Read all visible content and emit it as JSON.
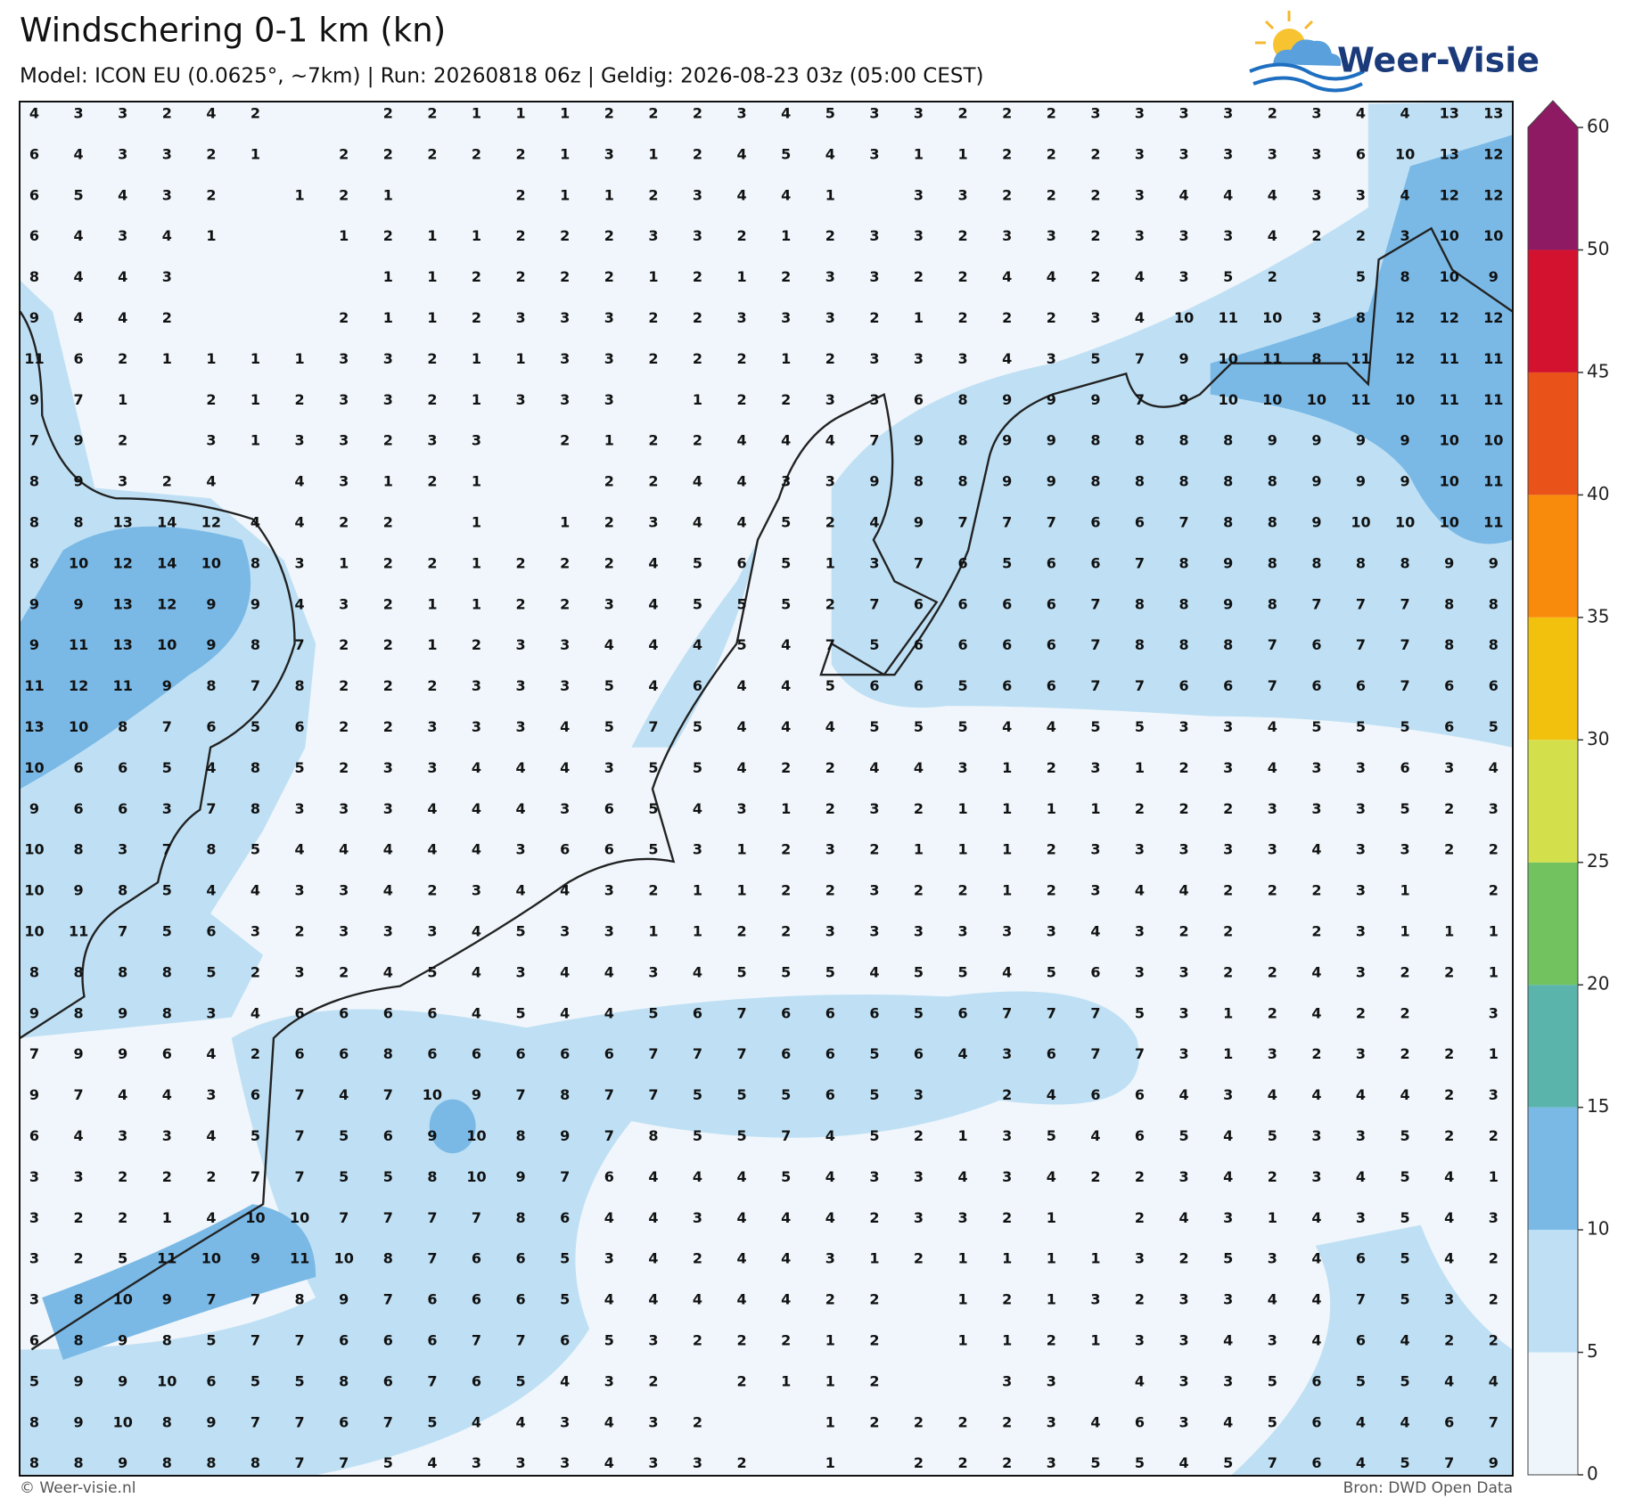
{
  "header": {
    "title": "Windschering 0-1 km (kn)",
    "subtitle": "Model: ICON EU (0.0625°, ~7km)  |  Run: 20260818 06z  |  Geldig: 2026-08-23 03z (05:00 CEST)"
  },
  "logo": "Weer-Visie",
  "footer": {
    "left": "© Weer-visie.nl",
    "right": "Bron: DWD Open Data"
  },
  "colorbar": {
    "levels": [
      0,
      5,
      10,
      15,
      20,
      25,
      30,
      35,
      40,
      45,
      50,
      60
    ],
    "colors": [
      "#eef5fb",
      "#bfe0f4",
      "#7ab9e6",
      "#5ab4ac",
      "#72c35f",
      "#d4e04b",
      "#f2c10e",
      "#f88b0c",
      "#e9531a",
      "#d2122f",
      "#8e1a64"
    ],
    "extend_color": "#8e1a64"
  },
  "grid": {
    "rows": [
      [
        4,
        3,
        3,
        2,
        4,
        2,
        null,
        null,
        2,
        2,
        1,
        1,
        1,
        2,
        2,
        2,
        3,
        4,
        5,
        3,
        3,
        2,
        2,
        2,
        3,
        3,
        3,
        3,
        2,
        3,
        4,
        4,
        13,
        13
      ],
      [
        6,
        4,
        3,
        3,
        2,
        1,
        null,
        2,
        2,
        2,
        2,
        2,
        1,
        3,
        1,
        2,
        4,
        5,
        4,
        3,
        1,
        1,
        2,
        2,
        2,
        3,
        3,
        3,
        3,
        3,
        6,
        10,
        13,
        12
      ],
      [
        6,
        5,
        4,
        3,
        2,
        null,
        1,
        2,
        1,
        null,
        null,
        2,
        1,
        1,
        2,
        3,
        4,
        4,
        1,
        null,
        3,
        3,
        2,
        2,
        2,
        3,
        4,
        4,
        4,
        3,
        3,
        4,
        12,
        12
      ],
      [
        6,
        4,
        3,
        4,
        1,
        null,
        null,
        1,
        2,
        1,
        1,
        2,
        2,
        2,
        3,
        3,
        2,
        1,
        2,
        3,
        3,
        2,
        3,
        3,
        2,
        3,
        3,
        3,
        4,
        2,
        2,
        3,
        10,
        10
      ],
      [
        8,
        4,
        4,
        3,
        null,
        null,
        null,
        null,
        1,
        1,
        2,
        2,
        2,
        2,
        1,
        2,
        1,
        2,
        3,
        3,
        2,
        2,
        4,
        4,
        2,
        4,
        3,
        5,
        2,
        null,
        5,
        8,
        10,
        9
      ],
      [
        9,
        4,
        4,
        2,
        null,
        null,
        null,
        2,
        1,
        1,
        2,
        3,
        3,
        3,
        2,
        2,
        3,
        3,
        3,
        2,
        1,
        2,
        2,
        2,
        3,
        4,
        10,
        11,
        10,
        3,
        8,
        12,
        12,
        12
      ],
      [
        11,
        6,
        2,
        1,
        1,
        1,
        1,
        3,
        3,
        2,
        1,
        1,
        3,
        3,
        2,
        2,
        2,
        1,
        2,
        3,
        3,
        3,
        4,
        3,
        5,
        7,
        9,
        10,
        11,
        8,
        11,
        12,
        11,
        11
      ],
      [
        9,
        7,
        1,
        null,
        2,
        1,
        2,
        3,
        3,
        2,
        1,
        3,
        3,
        3,
        null,
        1,
        2,
        2,
        3,
        3,
        6,
        8,
        9,
        9,
        9,
        7,
        9,
        10,
        10,
        10,
        11,
        10,
        11,
        11
      ],
      [
        7,
        9,
        2,
        null,
        3,
        1,
        3,
        3,
        2,
        3,
        3,
        null,
        2,
        1,
        2,
        2,
        4,
        4,
        4,
        7,
        9,
        8,
        9,
        9,
        8,
        8,
        8,
        8,
        9,
        9,
        9,
        9,
        10,
        10
      ],
      [
        8,
        9,
        3,
        2,
        4,
        null,
        4,
        3,
        1,
        2,
        1,
        null,
        null,
        2,
        2,
        4,
        4,
        3,
        3,
        9,
        8,
        8,
        9,
        9,
        8,
        8,
        8,
        8,
        8,
        9,
        9,
        9,
        10,
        11
      ],
      [
        8,
        8,
        13,
        14,
        12,
        4,
        4,
        2,
        2,
        null,
        1,
        null,
        1,
        2,
        3,
        4,
        4,
        5,
        2,
        4,
        9,
        7,
        7,
        7,
        6,
        6,
        7,
        8,
        8,
        9,
        10,
        10,
        10,
        11
      ],
      [
        8,
        10,
        12,
        14,
        10,
        8,
        3,
        1,
        2,
        2,
        1,
        2,
        2,
        2,
        4,
        5,
        6,
        5,
        1,
        3,
        7,
        6,
        5,
        6,
        6,
        7,
        8,
        9,
        8,
        8,
        8,
        8,
        9,
        9
      ],
      [
        9,
        9,
        13,
        12,
        9,
        9,
        4,
        3,
        2,
        1,
        1,
        2,
        2,
        3,
        4,
        5,
        5,
        5,
        2,
        7,
        6,
        6,
        6,
        6,
        7,
        8,
        8,
        9,
        8,
        7,
        7,
        7,
        8,
        8
      ],
      [
        9,
        11,
        13,
        10,
        9,
        8,
        7,
        2,
        2,
        1,
        2,
        3,
        3,
        4,
        4,
        4,
        5,
        4,
        7,
        5,
        6,
        6,
        6,
        6,
        7,
        8,
        8,
        8,
        7,
        6,
        7,
        7,
        8,
        8
      ],
      [
        11,
        12,
        11,
        9,
        8,
        7,
        8,
        2,
        2,
        2,
        3,
        3,
        3,
        5,
        4,
        6,
        4,
        4,
        5,
        6,
        6,
        5,
        6,
        6,
        7,
        7,
        6,
        6,
        7,
        6,
        6,
        7,
        6,
        6
      ],
      [
        13,
        10,
        8,
        7,
        6,
        5,
        6,
        2,
        2,
        3,
        3,
        3,
        4,
        5,
        7,
        5,
        4,
        4,
        4,
        5,
        5,
        5,
        4,
        4,
        5,
        5,
        3,
        3,
        4,
        5,
        5,
        5,
        6,
        5
      ],
      [
        10,
        6,
        6,
        5,
        4,
        8,
        5,
        2,
        3,
        3,
        4,
        4,
        4,
        3,
        5,
        5,
        4,
        2,
        2,
        4,
        4,
        3,
        1,
        2,
        3,
        1,
        2,
        3,
        4,
        3,
        3,
        6,
        3,
        4
      ],
      [
        9,
        6,
        6,
        3,
        7,
        8,
        3,
        3,
        3,
        4,
        4,
        4,
        3,
        6,
        5,
        4,
        3,
        1,
        2,
        3,
        2,
        1,
        1,
        1,
        1,
        2,
        2,
        2,
        3,
        3,
        3,
        5,
        2,
        3
      ],
      [
        10,
        8,
        3,
        7,
        8,
        5,
        4,
        4,
        4,
        4,
        4,
        3,
        6,
        6,
        5,
        3,
        1,
        2,
        3,
        2,
        1,
        1,
        1,
        2,
        3,
        3,
        3,
        3,
        3,
        4,
        3,
        3,
        2,
        2
      ],
      [
        10,
        9,
        8,
        5,
        4,
        4,
        3,
        3,
        4,
        2,
        3,
        4,
        4,
        3,
        2,
        1,
        1,
        2,
        2,
        3,
        2,
        2,
        1,
        2,
        3,
        4,
        4,
        2,
        2,
        2,
        3,
        1,
        null,
        2
      ],
      [
        10,
        11,
        7,
        5,
        6,
        3,
        2,
        3,
        3,
        3,
        4,
        5,
        3,
        3,
        1,
        1,
        2,
        2,
        3,
        3,
        3,
        3,
        3,
        3,
        4,
        3,
        2,
        2,
        null,
        2,
        3,
        1,
        1,
        1
      ],
      [
        8,
        8,
        8,
        8,
        5,
        2,
        3,
        2,
        4,
        5,
        4,
        3,
        4,
        4,
        3,
        4,
        5,
        5,
        5,
        4,
        5,
        5,
        4,
        5,
        6,
        3,
        3,
        2,
        2,
        4,
        3,
        2,
        2,
        1
      ],
      [
        9,
        8,
        9,
        8,
        3,
        4,
        6,
        6,
        6,
        6,
        4,
        5,
        4,
        4,
        5,
        6,
        7,
        6,
        6,
        6,
        5,
        6,
        7,
        7,
        7,
        5,
        3,
        1,
        2,
        4,
        2,
        2,
        null,
        3
      ],
      [
        7,
        9,
        9,
        6,
        4,
        2,
        6,
        6,
        8,
        6,
        6,
        6,
        6,
        6,
        7,
        7,
        7,
        6,
        6,
        5,
        6,
        4,
        3,
        6,
        7,
        7,
        3,
        1,
        3,
        2,
        3,
        2,
        2,
        1
      ],
      [
        9,
        7,
        4,
        4,
        3,
        6,
        7,
        4,
        7,
        10,
        9,
        7,
        8,
        7,
        7,
        5,
        5,
        5,
        6,
        5,
        3,
        null,
        2,
        4,
        6,
        6,
        4,
        3,
        4,
        4,
        4,
        4,
        2,
        3
      ],
      [
        6,
        4,
        3,
        3,
        4,
        5,
        7,
        5,
        6,
        9,
        10,
        8,
        9,
        7,
        8,
        5,
        5,
        7,
        4,
        5,
        2,
        1,
        3,
        5,
        4,
        6,
        5,
        4,
        5,
        3,
        3,
        5,
        2,
        2
      ],
      [
        3,
        3,
        2,
        2,
        2,
        7,
        7,
        5,
        5,
        8,
        10,
        9,
        7,
        6,
        4,
        4,
        4,
        5,
        4,
        3,
        3,
        4,
        3,
        4,
        2,
        2,
        3,
        4,
        2,
        3,
        4,
        5,
        4,
        1
      ],
      [
        3,
        2,
        2,
        1,
        4,
        10,
        10,
        7,
        7,
        7,
        7,
        8,
        6,
        4,
        4,
        3,
        4,
        4,
        4,
        2,
        3,
        3,
        2,
        1,
        null,
        2,
        4,
        3,
        1,
        4,
        3,
        5,
        4,
        3
      ],
      [
        3,
        2,
        5,
        11,
        10,
        9,
        11,
        10,
        8,
        7,
        6,
        6,
        5,
        3,
        4,
        2,
        4,
        4,
        3,
        1,
        2,
        1,
        1,
        1,
        1,
        3,
        2,
        5,
        3,
        4,
        6,
        5,
        4,
        2
      ],
      [
        3,
        8,
        10,
        9,
        7,
        7,
        8,
        9,
        7,
        6,
        6,
        6,
        5,
        4,
        4,
        4,
        4,
        4,
        2,
        2,
        null,
        1,
        2,
        1,
        3,
        2,
        3,
        3,
        4,
        4,
        7,
        5,
        3,
        2
      ],
      [
        6,
        8,
        9,
        8,
        5,
        7,
        7,
        6,
        6,
        6,
        7,
        7,
        6,
        5,
        3,
        2,
        2,
        2,
        1,
        2,
        null,
        1,
        1,
        2,
        1,
        3,
        3,
        4,
        3,
        4,
        6,
        4,
        2,
        2
      ],
      [
        5,
        9,
        9,
        10,
        6,
        5,
        5,
        8,
        6,
        7,
        6,
        5,
        4,
        3,
        2,
        null,
        2,
        1,
        1,
        2,
        null,
        null,
        3,
        3,
        null,
        4,
        3,
        3,
        5,
        6,
        5,
        5,
        4,
        4
      ],
      [
        8,
        9,
        10,
        8,
        9,
        7,
        7,
        6,
        7,
        5,
        4,
        4,
        3,
        4,
        3,
        2,
        null,
        null,
        1,
        2,
        2,
        2,
        2,
        3,
        4,
        6,
        3,
        4,
        5,
        6,
        4,
        4,
        6,
        7
      ],
      [
        8,
        8,
        9,
        8,
        8,
        8,
        7,
        7,
        5,
        4,
        3,
        3,
        3,
        4,
        3,
        3,
        2,
        null,
        1,
        null,
        2,
        2,
        2,
        3,
        5,
        5,
        4,
        5,
        7,
        6,
        4,
        5,
        7,
        9
      ]
    ]
  }
}
